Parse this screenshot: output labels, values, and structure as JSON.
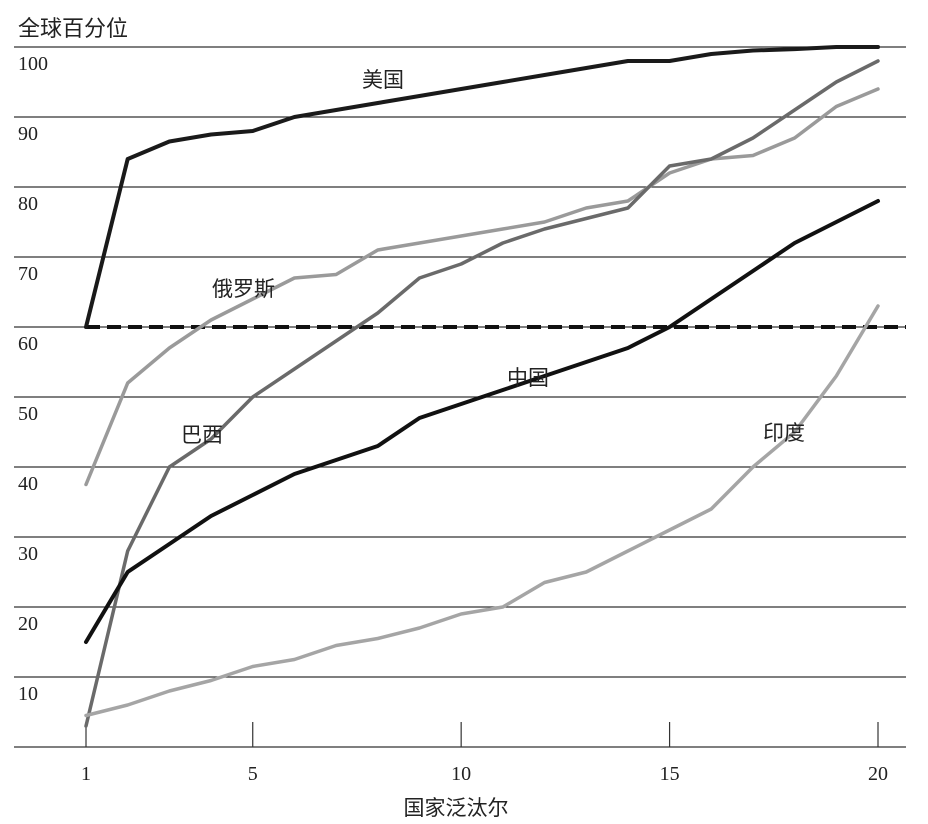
{
  "chart_data": {
    "type": "line",
    "title": "全球百分位",
    "xlabel": "国家泛汰尔",
    "ylabel": "",
    "xlim": [
      1,
      20
    ],
    "ylim": [
      0,
      100
    ],
    "x_ticks": [
      1,
      5,
      10,
      15,
      20
    ],
    "y_ticks": [
      10,
      20,
      30,
      40,
      50,
      60,
      70,
      80,
      90,
      100
    ],
    "grid": "horizontal",
    "reference_line": {
      "y": 60,
      "style": "dashed"
    },
    "x": [
      1,
      2,
      3,
      4,
      5,
      6,
      7,
      8,
      9,
      10,
      11,
      12,
      13,
      14,
      15,
      16,
      17,
      18,
      19,
      20
    ],
    "series": [
      {
        "name": "美国",
        "color": "#1a1a1a",
        "values": [
          60,
          84,
          86.5,
          87.5,
          88,
          90,
          91,
          92,
          93,
          94,
          95,
          96,
          97,
          98,
          98,
          99,
          99.5,
          99.7,
          100,
          100
        ]
      },
      {
        "name": "俄罗斯",
        "color": "#9a9a9a",
        "values": [
          37.5,
          52,
          57,
          61,
          64,
          67,
          67.5,
          71,
          72,
          73,
          74,
          75,
          77,
          78,
          82,
          84,
          84.5,
          87,
          91.5,
          94
        ]
      },
      {
        "name": "巴西",
        "color": "#6a6a6a",
        "values": [
          3,
          28,
          40,
          44,
          50,
          54,
          58,
          62,
          67,
          69,
          72,
          74,
          75.5,
          77,
          83,
          84,
          87,
          91,
          95,
          98
        ]
      },
      {
        "name": "中国",
        "color": "#111111",
        "values": [
          15,
          25,
          29,
          33,
          36,
          39,
          41,
          43,
          47,
          49,
          51,
          53,
          55,
          57,
          60,
          64,
          68,
          72,
          75,
          78
        ]
      },
      {
        "name": "印度",
        "color": "#a5a5a5",
        "values": [
          4.5,
          6,
          8,
          9.5,
          11.5,
          12.5,
          14.5,
          15.5,
          17,
          19,
          20,
          23.5,
          25,
          28,
          31,
          34,
          40,
          45,
          53,
          63
        ]
      }
    ]
  }
}
